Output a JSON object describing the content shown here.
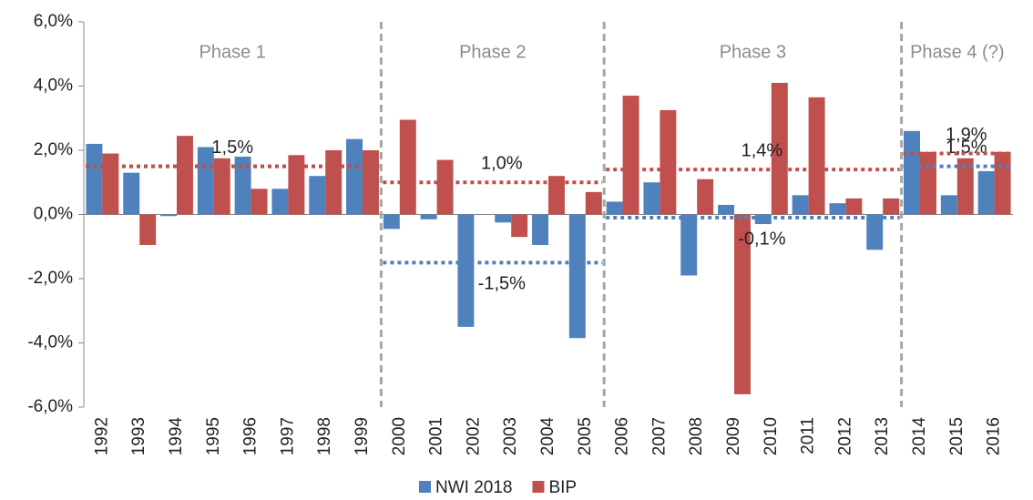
{
  "chart_data": {
    "type": "bar",
    "categories": [
      "1992",
      "1993",
      "1994",
      "1995",
      "1996",
      "1997",
      "1998",
      "1999",
      "2000",
      "2001",
      "2002",
      "2003",
      "2004",
      "2005",
      "2006",
      "2007",
      "2008",
      "2009",
      "2010",
      "2011",
      "2012",
      "2013",
      "2014",
      "2015",
      "2016"
    ],
    "series": [
      {
        "name": "NWI 2018",
        "color": "#4f81bd",
        "values": [
          2.2,
          1.3,
          -0.05,
          2.1,
          1.8,
          0.8,
          1.2,
          2.35,
          -0.45,
          -0.15,
          -3.5,
          -0.25,
          -0.95,
          -3.85,
          0.4,
          1.0,
          -1.9,
          0.3,
          -0.3,
          0.6,
          0.35,
          -1.1,
          2.6,
          0.6,
          1.35
        ]
      },
      {
        "name": "BIP",
        "color": "#c0504d",
        "values": [
          1.9,
          -0.95,
          2.45,
          1.75,
          0.8,
          1.85,
          2.0,
          2.0,
          2.95,
          1.7,
          0,
          -0.7,
          1.2,
          0.7,
          3.7,
          3.25,
          1.1,
          -5.6,
          4.1,
          3.65,
          0.5,
          0.5,
          1.95,
          1.75,
          1.95
        ]
      }
    ],
    "ylim": [
      -6,
      6
    ],
    "yticks": [
      {
        "value": -6,
        "label": "-6,0%"
      },
      {
        "value": -4,
        "label": "-4,0%"
      },
      {
        "value": -2,
        "label": "-2,0%"
      },
      {
        "value": 0,
        "label": "0,0%"
      },
      {
        "value": 2,
        "label": "2,0%"
      },
      {
        "value": 4,
        "label": "4,0%"
      },
      {
        "value": 6,
        "label": "6,0%"
      }
    ],
    "phases": [
      {
        "name": "Phase 1",
        "from": "1992",
        "to": "1999",
        "averages": [
          {
            "value": 1.5
          },
          {
            "value": 1.5,
            "label": "1,5%"
          }
        ]
      },
      {
        "name": "Phase 2",
        "from": "2000",
        "to": "2005",
        "averages": [
          {
            "value": -1.5,
            "label": "-1,5%"
          },
          {
            "value": 1.0,
            "label": "1,0%"
          }
        ]
      },
      {
        "name": "Phase 3",
        "from": "2006",
        "to": "2013",
        "averages": [
          {
            "value": -0.1,
            "label": "-0,1%"
          },
          {
            "value": 1.4,
            "label": "1,4%"
          }
        ]
      },
      {
        "name": "Phase 4 (?)",
        "from": "2014",
        "to": "2016",
        "averages": [
          {
            "value": 1.5,
            "label": "1,5%"
          },
          {
            "value": 1.9,
            "label": "1,9%"
          }
        ]
      }
    ],
    "legend": "bottom"
  }
}
